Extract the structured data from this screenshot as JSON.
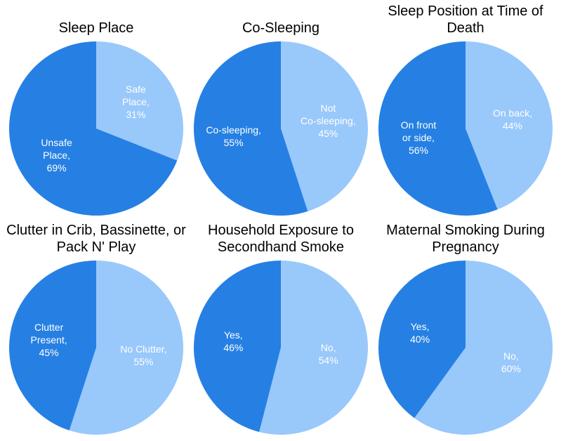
{
  "chart_data": [
    {
      "type": "pie",
      "title": "Sleep Place",
      "categories": [
        "Safe\nPlace,",
        "Unsafe\nPlace,"
      ],
      "values": [
        31,
        69
      ],
      "value_labels": [
        "31%",
        "69%"
      ],
      "colors": [
        "#99c8fb",
        "#2680e3"
      ]
    },
    {
      "type": "pie",
      "title": "Co-Sleeping",
      "categories": [
        "Not\nCo-sleeping,",
        "Co-sleeping,"
      ],
      "values": [
        45,
        55
      ],
      "value_labels": [
        "45%",
        "55%"
      ],
      "colors": [
        "#99c8fb",
        "#2680e3"
      ]
    },
    {
      "type": "pie",
      "title": "Sleep Position at Time of Death",
      "categories": [
        "On back,",
        "On front\nor side,"
      ],
      "values": [
        44,
        56
      ],
      "value_labels": [
        "44%",
        "56%"
      ],
      "colors": [
        "#99c8fb",
        "#2680e3"
      ]
    },
    {
      "type": "pie",
      "title": "Clutter in Crib, Bassinette, or Pack N' Play",
      "categories": [
        "No Clutter,",
        "Clutter\nPresent,"
      ],
      "values": [
        55,
        45
      ],
      "value_labels": [
        "55%",
        "45%"
      ],
      "colors": [
        "#99c8fb",
        "#2680e3"
      ]
    },
    {
      "type": "pie",
      "title": "Household Exposure to Secondhand Smoke",
      "categories": [
        "No,",
        "Yes,"
      ],
      "values": [
        54,
        46
      ],
      "value_labels": [
        "54%",
        "46%"
      ],
      "colors": [
        "#99c8fb",
        "#2680e3"
      ]
    },
    {
      "type": "pie",
      "title": "Maternal Smoking During Pregnancy",
      "categories": [
        "No,",
        "Yes,"
      ],
      "values": [
        60,
        40
      ],
      "value_labels": [
        "60%",
        "40%"
      ],
      "colors": [
        "#99c8fb",
        "#2680e3"
      ]
    }
  ]
}
